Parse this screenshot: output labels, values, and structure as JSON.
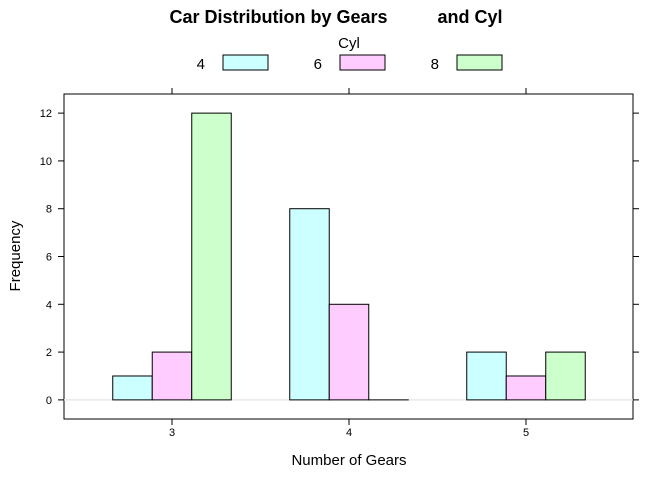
{
  "chart_data": {
    "type": "bar",
    "title": "Car Distribution by Gears          and Cyl",
    "xlabel": "Number of Gears",
    "ylabel": "Frequency",
    "legend_title": "Cyl",
    "legend_position": "top",
    "categories": [
      "3",
      "4",
      "5"
    ],
    "ylim": [
      -0.8,
      12.8
    ],
    "yticks": [
      "0",
      "2",
      "4",
      "6",
      "8",
      "10",
      "12"
    ],
    "series": [
      {
        "name": "4",
        "color": "#ccffff",
        "values": [
          1,
          8,
          2
        ]
      },
      {
        "name": "6",
        "color": "#ffccff",
        "values": [
          2,
          4,
          1
        ]
      },
      {
        "name": "8",
        "color": "#ccffcc",
        "values": [
          12,
          0,
          2
        ]
      }
    ]
  }
}
